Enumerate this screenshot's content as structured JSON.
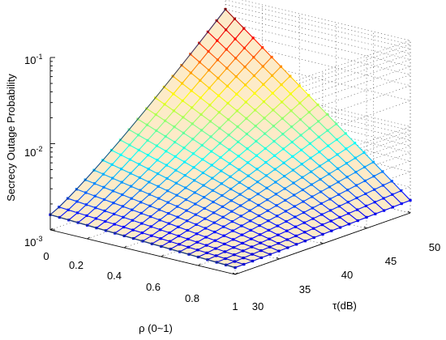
{
  "chart_data": {
    "type": "surface",
    "title": "",
    "xlabel": "ρ (0~1)",
    "ylabel": "τ(dB)",
    "zlabel": "Secrecy Outage Probability",
    "x_ticks": [
      "0",
      "0.2",
      "0.4",
      "0.6",
      "0.8",
      "1"
    ],
    "y_ticks": [
      "30",
      "35",
      "40",
      "45",
      "50"
    ],
    "z_ticks": [
      {
        "base": "10",
        "exp": "-3"
      },
      {
        "base": "10",
        "exp": "-2"
      },
      {
        "base": "10",
        "exp": "-1"
      }
    ],
    "xlim": [
      0,
      1
    ],
    "ylim": [
      30,
      50
    ],
    "zlim": [
      0.001,
      0.1
    ],
    "z_scale": "log",
    "grid": true,
    "mesh": {
      "rho_points": 21,
      "tau_points": 21
    },
    "corner_values": [
      {
        "rho": 0,
        "tau": 50,
        "value": 0.07
      },
      {
        "rho": 0,
        "tau": 30,
        "value": 0.0015
      },
      {
        "rho": 1,
        "tau": 30,
        "value": 0.0012
      },
      {
        "rho": 1,
        "tau": 50,
        "value": 0.0014
      }
    ],
    "colormap": "jet",
    "surface_fill": "#fdebc8"
  }
}
